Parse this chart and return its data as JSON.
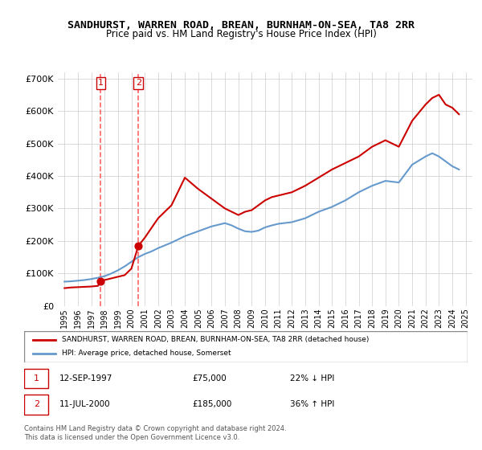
{
  "title": "SANDHURST, WARREN ROAD, BREAN, BURNHAM-ON-SEA, TA8 2RR",
  "subtitle": "Price paid vs. HM Land Registry's House Price Index (HPI)",
  "red_line_label": "SANDHURST, WARREN ROAD, BREAN, BURNHAM-ON-SEA, TA8 2RR (detached house)",
  "blue_line_label": "HPI: Average price, detached house, Somerset",
  "legend1_num": "1",
  "legend1_date": "12-SEP-1997",
  "legend1_price": "£75,000",
  "legend1_hpi": "22% ↓ HPI",
  "legend2_num": "2",
  "legend2_date": "11-JUL-2000",
  "legend2_price": "£185,000",
  "legend2_hpi": "36% ↑ HPI",
  "footer": "Contains HM Land Registry data © Crown copyright and database right 2024.\nThis data is licensed under the Open Government Licence v3.0.",
  "purchase1_year": 1997.7,
  "purchase1_value": 75000,
  "purchase2_year": 2000.52,
  "purchase2_value": 185000,
  "red_color": "#cc0000",
  "blue_color": "#6699cc",
  "dashed_color": "#ff6666",
  "bg_color": "#ffffff",
  "grid_color": "#cccccc",
  "ylim": [
    0,
    720000
  ],
  "yticks": [
    0,
    100000,
    200000,
    300000,
    400000,
    500000,
    600000,
    700000
  ],
  "red_x": [
    1995,
    1995.5,
    1996,
    1996.5,
    1997,
    1997.5,
    1997.7,
    1997.75,
    1998,
    1998.5,
    1999,
    1999.5,
    2000,
    2000.52,
    2001,
    2001.5,
    2002,
    2003,
    2004,
    2005,
    2006,
    2007,
    2007.5,
    2008,
    2008.5,
    2009,
    2009.5,
    2010,
    2010.5,
    2011,
    2012,
    2013,
    2014,
    2015,
    2016,
    2017,
    2018,
    2019,
    2020,
    2021,
    2022,
    2022.5,
    2023,
    2023.5,
    2024,
    2024.5
  ],
  "red_y": [
    55000,
    57000,
    58000,
    59000,
    60000,
    62000,
    75000,
    76000,
    80000,
    85000,
    90000,
    95000,
    115000,
    185000,
    210000,
    240000,
    270000,
    310000,
    395000,
    360000,
    330000,
    300000,
    290000,
    280000,
    290000,
    295000,
    310000,
    325000,
    335000,
    340000,
    350000,
    370000,
    395000,
    420000,
    440000,
    460000,
    490000,
    510000,
    490000,
    570000,
    620000,
    640000,
    650000,
    620000,
    610000,
    590000
  ],
  "blue_x": [
    1995,
    1995.5,
    1996,
    1996.5,
    1997,
    1997.5,
    1998,
    1998.5,
    1999,
    1999.5,
    2000,
    2000.5,
    2001,
    2001.5,
    2002,
    2003,
    2004,
    2005,
    2006,
    2007,
    2007.5,
    2008,
    2008.5,
    2009,
    2009.5,
    2010,
    2010.5,
    2011,
    2012,
    2013,
    2014,
    2015,
    2016,
    2017,
    2018,
    2019,
    2020,
    2021,
    2022,
    2022.5,
    2023,
    2023.5,
    2024,
    2024.5
  ],
  "blue_y": [
    75000,
    76000,
    78000,
    80000,
    83000,
    87000,
    92000,
    100000,
    110000,
    122000,
    136000,
    150000,
    160000,
    168000,
    178000,
    195000,
    215000,
    230000,
    245000,
    255000,
    248000,
    238000,
    230000,
    228000,
    232000,
    242000,
    248000,
    253000,
    258000,
    270000,
    290000,
    305000,
    325000,
    350000,
    370000,
    385000,
    380000,
    435000,
    460000,
    470000,
    460000,
    445000,
    430000,
    420000
  ]
}
